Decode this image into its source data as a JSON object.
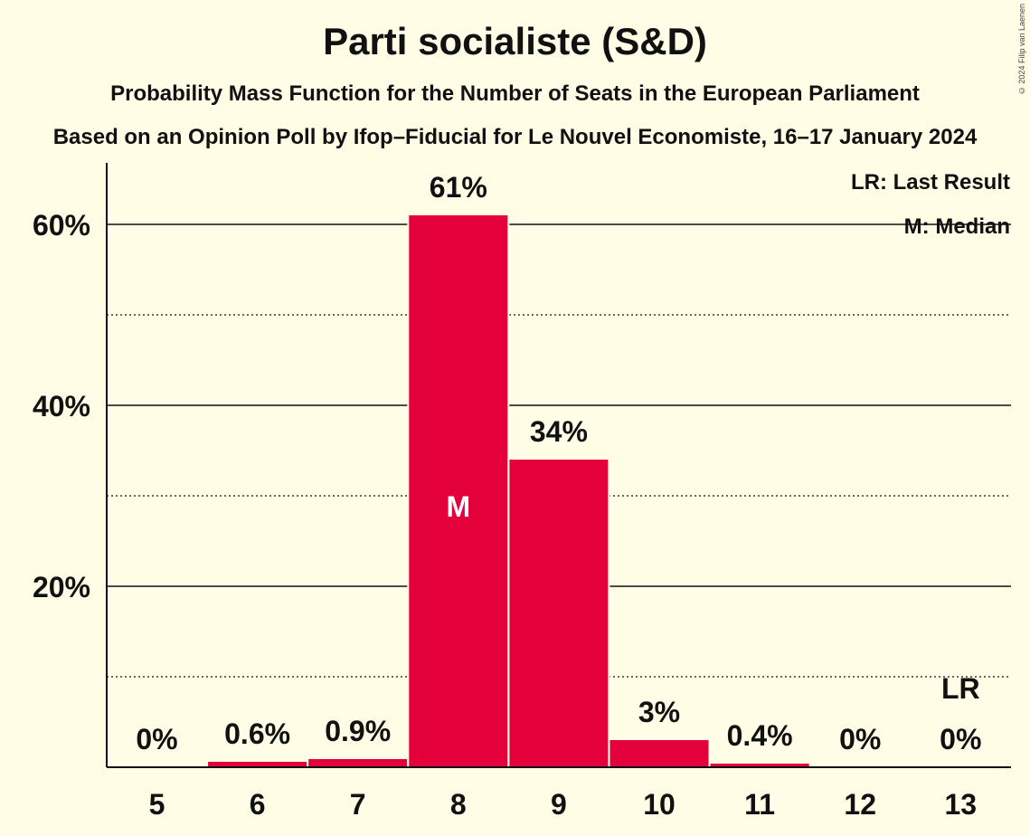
{
  "header": {
    "title": "Parti socialiste (S&D)",
    "subtitle": "Probability Mass Function for the Number of Seats in the European Parliament",
    "source": "Based on an Opinion Poll by Ifop–Fiducial for Le Nouvel Economiste, 16–17 January 2024",
    "copyright": "© 2024 Filip van Laenen"
  },
  "legend": {
    "last_result": "LR: Last Result",
    "median": "M: Median"
  },
  "colors": {
    "background": "#FFFDE6",
    "bar": "#E4003B",
    "text": "#111111"
  },
  "chart_data": {
    "type": "bar",
    "title": "Parti socialiste (S&D)",
    "xlabel": "",
    "ylabel": "",
    "categories": [
      "5",
      "6",
      "7",
      "8",
      "9",
      "10",
      "11",
      "12",
      "13"
    ],
    "values": [
      0,
      0.6,
      0.9,
      61,
      34,
      3,
      0.4,
      0,
      0
    ],
    "value_labels": [
      "0%",
      "0.6%",
      "0.9%",
      "61%",
      "34%",
      "3%",
      "0.4%",
      "0%",
      "0%"
    ],
    "ylim": [
      0,
      66
    ],
    "yticks": [
      20,
      40,
      60
    ],
    "ytick_labels": [
      "20%",
      "40%",
      "60%"
    ],
    "minor_gridlines": [
      10,
      30,
      50
    ],
    "median_category": "8",
    "median_marker": "M",
    "last_result_category": "13",
    "last_result_marker": "LR",
    "legend_position": "top-right",
    "grid": true
  }
}
